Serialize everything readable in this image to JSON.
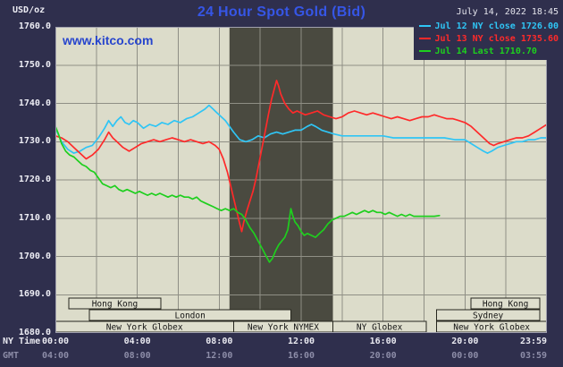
{
  "header": {
    "units_label": "USD/oz",
    "title": "24 Hour Spot Gold (Bid)",
    "datetime": "July 14, 2022 18:45",
    "watermark": "www.kitco.com"
  },
  "legend": [
    {
      "label": "Jul 12 NY close 1726.00",
      "color": "#2fc5f5"
    },
    {
      "label": "Jul 13 NY close 1735.60",
      "color": "#ff2a2a"
    },
    {
      "label": "Jul 14 Last 1710.70",
      "color": "#1ecf1e"
    }
  ],
  "axes": {
    "y_ticks": [
      "1760.0",
      "1750.0",
      "1740.0",
      "1730.0",
      "1720.0",
      "1710.0",
      "1700.0",
      "1690.0",
      "1680.0"
    ],
    "tick_hours": [
      0,
      4,
      8,
      12,
      16,
      20,
      23.983
    ],
    "x_rows": [
      {
        "label": "NY Time",
        "ticks": [
          "00:00",
          "04:00",
          "08:00",
          "12:00",
          "16:00",
          "20:00",
          "23:59"
        ]
      },
      {
        "label": "GMT",
        "ticks": [
          "04:00",
          "08:00",
          "12:00",
          "16:00",
          "20:00",
          "00:00",
          "03:59"
        ]
      }
    ]
  },
  "chart_data": {
    "type": "line",
    "title": "24 Hour Spot Gold (Bid)",
    "ylabel": "USD/oz",
    "x_unit": "hours, NY time",
    "xlim": [
      0,
      24
    ],
    "ylim": [
      1680,
      1760
    ],
    "y_gridlines": [
      1690,
      1700,
      1710,
      1720,
      1730,
      1740,
      1750
    ],
    "x_gridline_step_hours": 2,
    "nymex_shade_hours": [
      8.5,
      13.55
    ],
    "colors": {
      "background": "#2f2f4d",
      "plot_background": "#dcdcca",
      "grid": "#8f8f85",
      "shade": "#4a4a40",
      "session_fill": "#dedecd",
      "session_border": "#26261e",
      "plot_border": "#a0a0ae"
    },
    "series": [
      {
        "id": "jul12",
        "name": "Jul 12 NY close 1726.00",
        "color": "#2fc5f5",
        "x": [
          0,
          0.3,
          0.6,
          0.9,
          1.2,
          1.5,
          1.8,
          2.1,
          2.4,
          2.6,
          2.8,
          3,
          3.2,
          3.4,
          3.6,
          3.8,
          4,
          4.3,
          4.6,
          4.9,
          5.2,
          5.5,
          5.8,
          6.1,
          6.4,
          6.7,
          7,
          7.3,
          7.5,
          7.7,
          7.9,
          8.1,
          8.3,
          8.5,
          8.7,
          9,
          9.3,
          9.6,
          9.9,
          10.2,
          10.5,
          10.8,
          11.1,
          11.4,
          11.7,
          12,
          12.3,
          12.5,
          12.7,
          13,
          13.3,
          13.6,
          14,
          14.5,
          15,
          15.5,
          16,
          16.5,
          17,
          17.5,
          18,
          18.5,
          19,
          19.5,
          20,
          20.3,
          20.6,
          20.9,
          21.1,
          21.3,
          21.6,
          21.9,
          22.2,
          22.5,
          22.8,
          23.1,
          23.4,
          23.7,
          24
        ],
        "y": [
          1733.5,
          1730,
          1728,
          1727,
          1727.5,
          1728.5,
          1729,
          1731,
          1733.5,
          1735.5,
          1734,
          1735.5,
          1736.5,
          1735,
          1734.5,
          1735.5,
          1735,
          1733.5,
          1734.5,
          1734,
          1735,
          1734.5,
          1735.5,
          1735,
          1736,
          1736.5,
          1737.5,
          1738.5,
          1739.5,
          1738.5,
          1737.5,
          1736.5,
          1735.5,
          1734,
          1732.5,
          1730.5,
          1730,
          1730.5,
          1731.5,
          1731,
          1732,
          1732.5,
          1732,
          1732.5,
          1733,
          1733,
          1734,
          1734.5,
          1734,
          1733,
          1732.5,
          1732,
          1731.5,
          1731.5,
          1731.5,
          1731.5,
          1731.5,
          1731,
          1731,
          1731,
          1731,
          1731,
          1731,
          1730.5,
          1730.5,
          1729.5,
          1728.5,
          1727.5,
          1727,
          1727.5,
          1728.5,
          1729,
          1729.5,
          1730,
          1730,
          1730.5,
          1730.5,
          1731,
          1731
        ]
      },
      {
        "id": "jul13",
        "name": "Jul 13 NY close 1735.60",
        "color": "#ff2a2a",
        "x": [
          0,
          0.3,
          0.6,
          0.9,
          1.2,
          1.5,
          1.8,
          2.1,
          2.4,
          2.6,
          2.8,
          3,
          3.3,
          3.6,
          3.9,
          4.2,
          4.5,
          4.8,
          5.1,
          5.4,
          5.7,
          6,
          6.3,
          6.6,
          6.9,
          7.2,
          7.5,
          7.8,
          8,
          8.2,
          8.4,
          8.6,
          8.8,
          9,
          9.1,
          9.2,
          9.35,
          9.5,
          9.65,
          9.8,
          10,
          10.2,
          10.4,
          10.55,
          10.7,
          10.8,
          10.9,
          11,
          11.2,
          11.4,
          11.6,
          11.8,
          12,
          12.2,
          12.5,
          12.8,
          13.1,
          13.4,
          13.7,
          14,
          14.3,
          14.6,
          14.9,
          15.2,
          15.5,
          15.8,
          16.1,
          16.4,
          16.7,
          17,
          17.3,
          17.6,
          17.9,
          18.2,
          18.5,
          18.8,
          19.1,
          19.4,
          19.7,
          20,
          20.3,
          20.6,
          20.9,
          21.2,
          21.4,
          21.6,
          21.9,
          22.2,
          22.5,
          22.8,
          23.1,
          23.4,
          23.7,
          24
        ],
        "y": [
          1731.5,
          1731,
          1730,
          1728.5,
          1727,
          1725.5,
          1726.5,
          1728,
          1730.5,
          1732.5,
          1731,
          1730,
          1728.5,
          1727.5,
          1728.5,
          1729.5,
          1730,
          1730.5,
          1730,
          1730.5,
          1731,
          1730.5,
          1730,
          1730.5,
          1730,
          1729.5,
          1730,
          1729,
          1728,
          1725.5,
          1722,
          1717.5,
          1713,
          1708.5,
          1706.5,
          1709,
          1712,
          1714.5,
          1717,
          1720.5,
          1726,
          1731.5,
          1737,
          1741,
          1744,
          1746,
          1744.5,
          1742.5,
          1740,
          1738.5,
          1737.5,
          1738,
          1737.5,
          1737,
          1737.5,
          1738,
          1737,
          1736.5,
          1736,
          1736.5,
          1737.5,
          1738,
          1737.5,
          1737,
          1737.5,
          1737,
          1736.5,
          1736,
          1736.5,
          1736,
          1735.5,
          1736,
          1736.5,
          1736.5,
          1737,
          1736.5,
          1736,
          1736,
          1735.5,
          1735,
          1734,
          1732.5,
          1731,
          1729.5,
          1729,
          1729.5,
          1730,
          1730.5,
          1731,
          1731,
          1731.5,
          1732.5,
          1733.5,
          1734.5
        ]
      },
      {
        "id": "jul14",
        "name": "Jul 14 Last 1710.70",
        "color": "#1ecf1e",
        "x": [
          0,
          0.15,
          0.3,
          0.5,
          0.7,
          0.9,
          1.1,
          1.3,
          1.5,
          1.7,
          1.9,
          2.1,
          2.3,
          2.5,
          2.7,
          2.9,
          3.1,
          3.3,
          3.5,
          3.7,
          3.9,
          4.1,
          4.3,
          4.5,
          4.7,
          4.9,
          5.1,
          5.3,
          5.5,
          5.7,
          5.9,
          6.1,
          6.3,
          6.5,
          6.7,
          6.9,
          7.1,
          7.3,
          7.5,
          7.7,
          7.9,
          8.1,
          8.3,
          8.5,
          8.7,
          8.9,
          9.1,
          9.3,
          9.5,
          9.7,
          9.9,
          10.1,
          10.3,
          10.45,
          10.6,
          10.75,
          10.9,
          11.05,
          11.2,
          11.35,
          11.5,
          11.6,
          11.7,
          11.85,
          12,
          12.15,
          12.3,
          12.5,
          12.7,
          12.9,
          13.1,
          13.3,
          13.5,
          13.7,
          13.9,
          14.1,
          14.3,
          14.5,
          14.7,
          14.9,
          15.1,
          15.3,
          15.5,
          15.7,
          15.9,
          16.1,
          16.3,
          16.5,
          16.7,
          16.9,
          17.1,
          17.3,
          17.5,
          17.7,
          17.9,
          18.1,
          18.3,
          18.5,
          18.75
        ],
        "y": [
          1734,
          1732,
          1729.5,
          1727.5,
          1726.5,
          1726,
          1725,
          1724,
          1723.5,
          1722.5,
          1722,
          1720.5,
          1719,
          1718.5,
          1718,
          1718.5,
          1717.5,
          1717,
          1717.5,
          1717,
          1716.5,
          1717,
          1716.5,
          1716,
          1716.5,
          1716,
          1716.5,
          1716,
          1715.5,
          1716,
          1715.5,
          1716,
          1715.5,
          1715.5,
          1715,
          1715.5,
          1714.5,
          1714,
          1713.5,
          1713,
          1712.5,
          1712,
          1712.5,
          1712,
          1712.5,
          1711.5,
          1711,
          1709.5,
          1707.5,
          1706,
          1704,
          1702,
          1700,
          1698.5,
          1699.5,
          1701.5,
          1703,
          1704,
          1705,
          1707,
          1712.5,
          1710.5,
          1709,
          1708,
          1706.5,
          1705.5,
          1706,
          1705.5,
          1705,
          1706,
          1707,
          1708.5,
          1709.5,
          1710,
          1710.5,
          1710.5,
          1711,
          1711.5,
          1711,
          1711.5,
          1712,
          1711.5,
          1712,
          1711.5,
          1711.5,
          1711,
          1711.5,
          1711,
          1710.5,
          1711,
          1710.5,
          1711,
          1710.5,
          1710.5,
          1710.5,
          1710.5,
          1710.5,
          1710.5,
          1710.7
        ]
      }
    ],
    "sessions": [
      {
        "row": 0,
        "label": "Hong Kong",
        "start_hour": 0.65,
        "end_hour": 5.15
      },
      {
        "row": 0,
        "label": "Hong Kong",
        "start_hour": 20.3,
        "end_hour": 23.65
      },
      {
        "row": 1,
        "label": "London",
        "start_hour": 1.65,
        "end_hour": 11.5
      },
      {
        "row": 1,
        "label": "Sydney",
        "start_hour": 18.6,
        "end_hour": 23.65
      },
      {
        "row": 2,
        "label": "New York Globex",
        "start_hour": 0,
        "end_hour": 8.7
      },
      {
        "row": 2,
        "label": "New York NYMEX",
        "start_hour": 8.7,
        "end_hour": 13.55
      },
      {
        "row": 2,
        "label": "NY Globex",
        "start_hour": 13.55,
        "end_hour": 18.1
      },
      {
        "row": 2,
        "label": "New York Globex",
        "start_hour": 18.6,
        "end_hour": 24
      }
    ]
  }
}
